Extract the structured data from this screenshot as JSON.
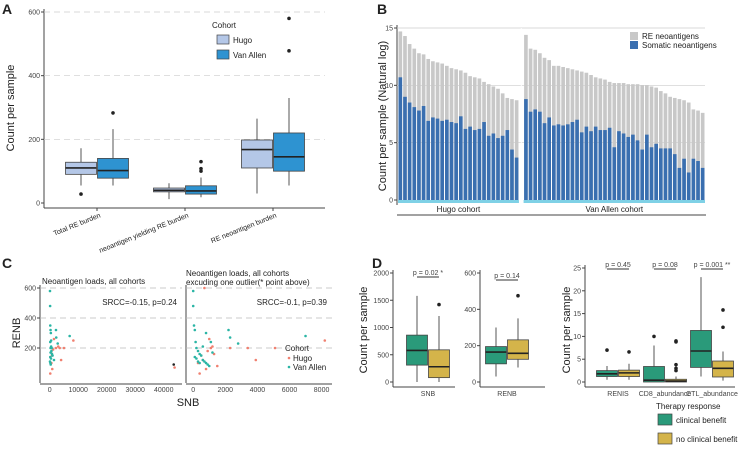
{
  "panel_labels": [
    "A",
    "B",
    "C",
    "D"
  ],
  "chart_data": [
    {
      "id": "A",
      "type": "boxplot",
      "ylabel": "Count per sample",
      "ylim": [
        0,
        600
      ],
      "yticks": [
        0,
        200,
        400,
        600
      ],
      "grid": "horizontal dashed",
      "categories": [
        "Total RE burden",
        "neoantigen yielding RE burden",
        "RE neoantigen burden"
      ],
      "legend": {
        "title": "Cohort",
        "position": "top-right",
        "entries": [
          "Hugo",
          "Van Allen"
        ]
      },
      "colors": {
        "Hugo": "#b4c7e7",
        "Van Allen": "#2e93d1"
      },
      "series": [
        {
          "name": "Hugo",
          "boxes": [
            {
              "q1": 90,
              "median": 110,
              "q3": 128,
              "low": 55,
              "high": 172,
              "outliers": [
                28
              ]
            },
            {
              "q1": 35,
              "median": 40,
              "q3": 47,
              "low": 12,
              "high": 62,
              "outliers": []
            },
            {
              "q1": 110,
              "median": 168,
              "q3": 198,
              "low": 30,
              "high": 265,
              "outliers": []
            }
          ]
        },
        {
          "name": "Van Allen",
          "boxes": [
            {
              "q1": 78,
              "median": 102,
              "q3": 140,
              "low": 55,
              "high": 232,
              "outliers": [
                283
              ]
            },
            {
              "q1": 28,
              "median": 38,
              "q3": 54,
              "low": 18,
              "high": 80,
              "outliers": [
                100,
                108,
                130
              ]
            },
            {
              "q1": 100,
              "median": 145,
              "q3": 220,
              "low": 55,
              "high": 330,
              "outliers": [
                478,
                580
              ]
            }
          ]
        }
      ]
    },
    {
      "id": "B",
      "type": "bar",
      "stacked": false,
      "ylabel": "Count per sample (Natural log)",
      "ylim": [
        0,
        15
      ],
      "yticks": [
        0,
        5,
        10,
        15
      ],
      "legend": {
        "position": "top-right",
        "entries": [
          "RE neoantigens",
          "Somatic neoantigens"
        ]
      },
      "colors": {
        "RE neoantigens": "#c8c8c8",
        "Somatic neoantigens": "#3a6fb0",
        "strip": "#7fd1e6"
      },
      "groups": [
        {
          "name": "Hugo cohort",
          "re": [
            14.7,
            14.3,
            13.6,
            13.2,
            12.8,
            12.7,
            12.3,
            12.1,
            12.0,
            11.9,
            11.7,
            11.5,
            11.4,
            11.3,
            11.1,
            10.8,
            10.7,
            10.6,
            10.3,
            10.1,
            9.9,
            9.7,
            9.3,
            8.9,
            8.8,
            8.7
          ],
          "somatic": [
            10.7,
            9.0,
            8.5,
            8.1,
            7.8,
            8.2,
            6.9,
            7.2,
            7.1,
            6.9,
            7.0,
            6.8,
            6.7,
            7.3,
            6.2,
            6.4,
            6.1,
            6.2,
            6.8,
            5.6,
            5.8,
            5.4,
            5.6,
            6.1,
            4.4,
            3.7
          ]
        },
        {
          "name": "Van Allen cohort",
          "re": [
            14.4,
            13.2,
            13.1,
            12.8,
            12.4,
            12.2,
            11.7,
            11.7,
            11.6,
            11.5,
            11.4,
            11.3,
            11.2,
            11.1,
            10.9,
            10.7,
            10.6,
            10.5,
            10.3,
            10.2,
            10.2,
            10.2,
            10.1,
            10.1,
            10.1,
            10.0,
            10.0,
            9.9,
            9.8,
            9.5,
            9.3,
            9.0,
            8.9,
            8.8,
            8.7,
            8.5,
            7.9,
            7.8,
            7.6
          ],
          "somatic": [
            8.8,
            7.7,
            7.9,
            7.7,
            6.7,
            7.2,
            6.5,
            6.6,
            6.5,
            6.6,
            6.8,
            7.0,
            5.9,
            6.4,
            6.0,
            6.4,
            6.1,
            6.1,
            6.3,
            4.6,
            6.0,
            5.8,
            5.5,
            5.7,
            5.2,
            4.4,
            5.7,
            4.6,
            4.9,
            4.5,
            4.5,
            4.5,
            4.0,
            2.8,
            3.6,
            2.4,
            3.6,
            3.4,
            2.8
          ]
        }
      ]
    },
    {
      "id": "C-left",
      "type": "scatter",
      "title": "Neoantigen loads, all cohorts",
      "annotation": "SRCC=-0.15, p=0.24",
      "xlabel": "SNB",
      "ylabel": "RENB",
      "xlim": [
        -2000,
        45000
      ],
      "ylim": [
        0,
        600
      ],
      "xticks": [
        0,
        10000,
        20000,
        30000,
        40000
      ],
      "yticks": [
        200,
        400,
        600
      ],
      "colors": {
        "Hugo": "#f08070",
        "Van Allen": "#2ab5a5"
      },
      "series": [
        {
          "name": "Hugo",
          "x": [
            200,
            500,
            800,
            1200,
            1500,
            2200,
            3000,
            3500,
            5000,
            8300,
            4000,
            900,
            600,
            43800
          ],
          "y": [
            30,
            170,
            150,
            190,
            260,
            200,
            210,
            200,
            200,
            250,
            120,
            60,
            100,
            70
          ]
        },
        {
          "name": "Van Allen",
          "x": [
            100,
            150,
            200,
            300,
            400,
            500,
            200,
            300,
            600,
            800,
            1000,
            1500,
            2200,
            2300,
            2800,
            7000,
            100,
            250,
            350,
            450,
            300,
            500,
            700,
            200
          ],
          "y": [
            580,
            480,
            350,
            320,
            300,
            250,
            240,
            200,
            180,
            160,
            150,
            120,
            320,
            270,
            230,
            280,
            110,
            100,
            90,
            130,
            170,
            210,
            200,
            140
          ]
        },
        {
          "name": "outlier",
          "x": [
            43500
          ],
          "y": [
            90
          ]
        }
      ]
    },
    {
      "id": "C-right",
      "type": "scatter",
      "title": "Neoantigen loads, all cohorts excuding one outlier(* point above)",
      "annotation": "SRCC=-0.1, p=0.39",
      "xlim": [
        -200,
        8400
      ],
      "ylim": [
        0,
        600
      ],
      "xticks": [
        0,
        2000,
        4000,
        6000,
        8000
      ],
      "legend": {
        "title": "Cohort",
        "position": "right",
        "entries": [
          "Hugo",
          "Van Allen"
        ]
      },
      "series": [
        {
          "name": "Hugo",
          "x": [
            700,
            400,
            600,
            900,
            1100,
            1300,
            1500,
            2300,
            3400,
            3900,
            5100,
            8200,
            800,
            1000,
            300,
            500,
            1200
          ],
          "y": [
            600,
            30,
            120,
            180,
            200,
            160,
            80,
            200,
            200,
            120,
            200,
            250,
            60,
            260,
            100,
            150,
            210
          ]
        },
        {
          "name": "Van Allen",
          "x": [
            0,
            0,
            50,
            100,
            150,
            200,
            300,
            400,
            500,
            600,
            700,
            800,
            900,
            1000,
            2200,
            2300,
            2800,
            7000,
            100,
            200,
            300,
            400,
            600,
            800,
            1100,
            1200
          ],
          "y": [
            580,
            480,
            350,
            320,
            240,
            200,
            180,
            160,
            150,
            120,
            110,
            100,
            90,
            80,
            320,
            270,
            230,
            280,
            140,
            130,
            110,
            100,
            210,
            300,
            240,
            170
          ]
        }
      ]
    },
    {
      "id": "D-SNB",
      "type": "boxplot",
      "ylabel": "Count per sample",
      "ylim": [
        0,
        2000
      ],
      "yticks": [
        0,
        500,
        1000,
        1500,
        2000
      ],
      "categories": [
        "SNB"
      ],
      "pvalue": "p = 0.02 *",
      "colors": {
        "clinical benefit": "#2a9a7a",
        "no clinical benefit": "#d4b44a"
      },
      "series": [
        {
          "name": "clinical benefit",
          "boxes": [
            {
              "q1": 310,
              "median": 580,
              "q3": 860,
              "low": 0,
              "high": 1580,
              "outliers": []
            }
          ]
        },
        {
          "name": "no clinical benefit",
          "boxes": [
            {
              "q1": 80,
              "median": 280,
              "q3": 590,
              "low": 0,
              "high": 1210,
              "outliers": [
                1420
              ]
            }
          ]
        }
      ]
    },
    {
      "id": "D-RENB",
      "type": "boxplot",
      "ylim": [
        0,
        600
      ],
      "yticks": [
        0,
        200,
        400,
        600
      ],
      "categories": [
        "RENB"
      ],
      "pvalue": "p = 0.14",
      "series": [
        {
          "name": "clinical benefit",
          "boxes": [
            {
              "q1": 100,
              "median": 165,
              "q3": 195,
              "low": 30,
              "high": 300,
              "outliers": []
            }
          ]
        },
        {
          "name": "no clinical benefit",
          "boxes": [
            {
              "q1": 125,
              "median": 158,
              "q3": 232,
              "low": 80,
              "high": 350,
              "outliers": [
                475
              ]
            }
          ]
        }
      ]
    },
    {
      "id": "D-immune",
      "type": "boxplot",
      "ylabel": "Count per sample",
      "ylim": [
        0,
        25
      ],
      "yticks": [
        0,
        5,
        10,
        15,
        20,
        25
      ],
      "categories": [
        "RENIS",
        "CD8_abundance",
        "CTL_abundance"
      ],
      "pvalues": [
        "p = 0.45",
        "p = 0.08",
        "p = 0.001 **"
      ],
      "legend": {
        "title": "Therapy response",
        "position": "bottom",
        "entries": [
          "clinical benefit",
          "no clinical benefit"
        ]
      },
      "series": [
        {
          "name": "clinical benefit",
          "boxes": [
            {
              "q1": 1.2,
              "median": 1.8,
              "q3": 2.5,
              "low": 0.5,
              "high": 3.5,
              "outliers": [
                7
              ]
            },
            {
              "q1": 0,
              "median": 0.4,
              "q3": 3.4,
              "low": 0,
              "high": 8,
              "outliers": [
                10
              ]
            },
            {
              "q1": 3.2,
              "median": 6.8,
              "q3": 11.3,
              "low": 1.2,
              "high": 23,
              "outliers": []
            }
          ]
        },
        {
          "name": "no clinical benefit",
          "boxes": [
            {
              "q1": 1.2,
              "median": 2.0,
              "q3": 2.6,
              "low": 0.5,
              "high": 4,
              "outliers": [
                6.6
              ]
            },
            {
              "q1": 0,
              "median": 0.2,
              "q3": 0.6,
              "low": 0,
              "high": 1.2,
              "outliers": [
                2.5,
                3,
                3.8,
                8.8,
                9
              ]
            },
            {
              "q1": 1.1,
              "median": 3,
              "q3": 4.6,
              "low": 0.3,
              "high": 6.7,
              "outliers": [
                12,
                15.8
              ]
            }
          ]
        }
      ]
    }
  ]
}
